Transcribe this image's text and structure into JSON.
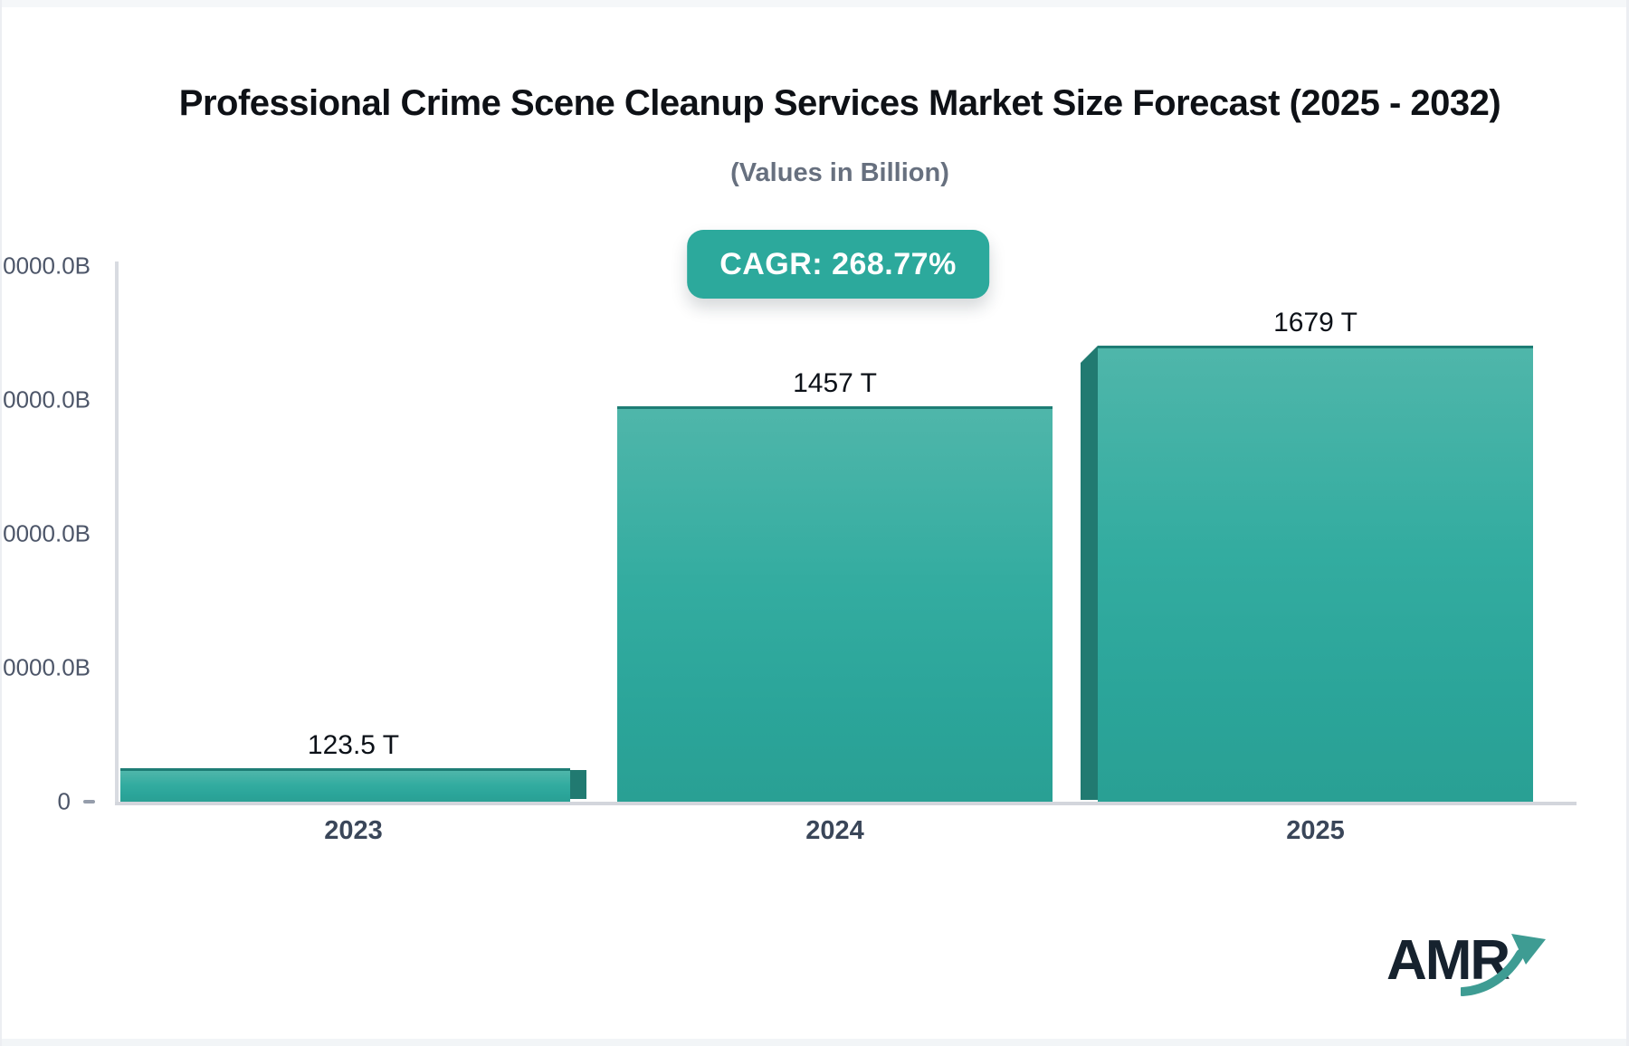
{
  "header": {
    "title": "Professional Crime Scene Cleanup Services Market Size Forecast (2025 - 2032)",
    "subtitle": "(Values in Billion)"
  },
  "badge": {
    "label": "CAGR: 268.77%"
  },
  "chart_data": {
    "type": "bar",
    "title": "Professional Crime Scene Cleanup Services Market Size Forecast (2025 - 2032)",
    "subtitle": "(Values in Billion)",
    "cagr_percent": 268.77,
    "categories": [
      "2023",
      "2024",
      "2025"
    ],
    "values": [
      123.5,
      1457,
      1679
    ],
    "value_unit": "T",
    "value_labels": [
      "123.5 T",
      "1457 T",
      "1679 T"
    ],
    "y_axis": {
      "unit": "Billion",
      "visible_tick_labels": [
        "0",
        "0000.0B",
        "0000.0B",
        "0000.0B",
        "0000.0B"
      ],
      "tick_labels_note": "upper tick labels are clipped at the left image edge",
      "ylim": [
        0,
        2000000
      ]
    },
    "grid": false,
    "legend": false,
    "bar_color_top": "#4fb6aa",
    "bar_color_bottom": "#29a094",
    "bar_side_color": "#217a71"
  },
  "colors": {
    "accent_teal": "#2ca99c",
    "axis_line": "#d8dbe1",
    "tick_text": "#4d5669",
    "category_text": "#3a4659",
    "title_text": "#0e1116",
    "subtitle_text": "#67707f",
    "brand_navy": "#16222e",
    "brand_arrow_teal": "#3e9c93"
  },
  "logo": {
    "text": "AMR",
    "arrow_icon": "growth-arrow-icon"
  }
}
